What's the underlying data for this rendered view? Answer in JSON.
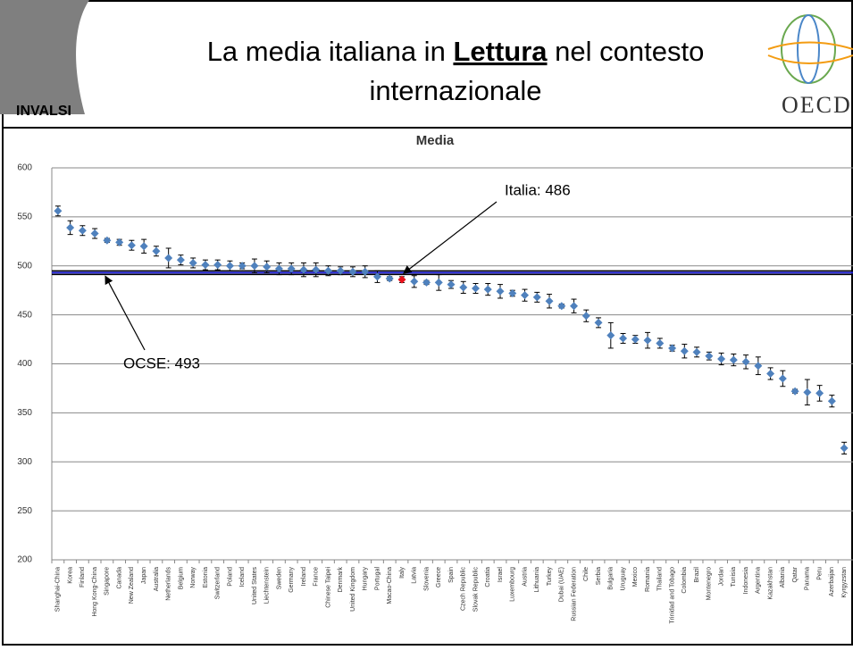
{
  "header": {
    "title": [
      "La media italiana in",
      "Lettura",
      "nel contesto",
      "internazionale"
    ],
    "logo_left": "INVALSI",
    "logo_right": "OECD"
  },
  "chart_data": {
    "type": "scatter",
    "title": "Media",
    "categories": [
      "Shanghai-China",
      "Korea",
      "Finland",
      "Hong Kong-China",
      "Singapore",
      "Canada",
      "New Zealand",
      "Japan",
      "Australia",
      "Netherlands",
      "Belgium",
      "Norway",
      "Estonia",
      "Switzerland",
      "Poland",
      "Iceland",
      "United States",
      "Liechtenstein",
      "Sweden",
      "Germany",
      "Ireland",
      "France",
      "Chinese Taipei",
      "Denmark",
      "United Kingdom",
      "Hungary",
      "Portugal",
      "Macao-China",
      "Italy",
      "Latvia",
      "Slovenia",
      "Greece",
      "Spain",
      "Czech Republic",
      "Slovak Republic",
      "Croatia",
      "Israel",
      "Luxembourg",
      "Austria",
      "Lithuania",
      "Turkey",
      "Dubai (UAE)",
      "Russian Federation",
      "Chile",
      "Serbia",
      "Bulgaria",
      "Uruguay",
      "Mexico",
      "Romania",
      "Thailand",
      "Trinidad and Tobago",
      "Colombia",
      "Brazil",
      "Montenegro",
      "Jordan",
      "Tunisia",
      "Indonesia",
      "Argentina",
      "Kazakhstan",
      "Albania",
      "Qatar",
      "Panama",
      "Peru",
      "Azerbaijan",
      "Kyrgyzstan"
    ],
    "values": [
      556,
      539,
      536,
      533,
      526,
      524,
      521,
      520,
      515,
      508,
      506,
      503,
      501,
      501,
      500,
      500,
      500,
      499,
      497,
      497,
      496,
      496,
      495,
      495,
      494,
      494,
      489,
      487,
      486,
      484,
      483,
      483,
      481,
      478,
      477,
      476,
      474,
      472,
      470,
      468,
      464,
      459,
      459,
      449,
      442,
      429,
      426,
      425,
      424,
      421,
      416,
      413,
      412,
      408,
      405,
      404,
      402,
      398,
      390,
      385,
      372,
      371,
      370,
      362,
      314
    ],
    "errors": [
      5,
      7,
      5,
      5,
      2,
      3,
      5,
      7,
      5,
      10,
      5,
      5,
      5,
      5,
      5,
      3,
      7,
      6,
      6,
      6,
      7,
      7,
      5,
      4,
      5,
      6,
      6,
      2,
      3,
      6,
      2,
      8,
      4,
      6,
      5,
      6,
      7,
      3,
      6,
      5,
      7,
      2,
      7,
      6,
      5,
      13,
      5,
      4,
      8,
      5,
      3,
      7,
      5,
      4,
      6,
      6,
      7,
      9,
      6,
      8,
      2,
      13,
      8,
      6,
      6
    ],
    "colors": [
      "#4f81bd",
      "#4f81bd",
      "#4f81bd",
      "#4f81bd",
      "#4f81bd",
      "#4f81bd",
      "#4f81bd",
      "#4f81bd",
      "#4f81bd",
      "#4f81bd",
      "#4f81bd",
      "#4f81bd",
      "#4f81bd",
      "#4f81bd",
      "#4f81bd",
      "#4f81bd",
      "#4f81bd",
      "#4f81bd",
      "#4f81bd",
      "#4f81bd",
      "#4f81bd",
      "#4f81bd",
      "#4f81bd",
      "#4f81bd",
      "#4f81bd",
      "#4f81bd",
      "#4f81bd",
      "#4f81bd",
      "#e8111a",
      "#4f81bd",
      "#4f81bd",
      "#4f81bd",
      "#4f81bd",
      "#4f81bd",
      "#4f81bd",
      "#4f81bd",
      "#4f81bd",
      "#4f81bd",
      "#4f81bd",
      "#4f81bd",
      "#4f81bd",
      "#4f81bd",
      "#4f81bd",
      "#4f81bd",
      "#4f81bd",
      "#4f81bd",
      "#4f81bd",
      "#4f81bd",
      "#4f81bd",
      "#4f81bd",
      "#4f81bd",
      "#4f81bd",
      "#4f81bd",
      "#4f81bd",
      "#4f81bd",
      "#4f81bd",
      "#4f81bd",
      "#4f81bd",
      "#4f81bd",
      "#4f81bd",
      "#4f81bd",
      "#4f81bd",
      "#4f81bd",
      "#4f81bd",
      "#4f81bd"
    ],
    "reference_lines": [
      {
        "value": 493,
        "color": "#1f1fd0"
      }
    ],
    "annotations": [
      {
        "text": "Italia: 486"
      },
      {
        "text": "OCSE: 493"
      }
    ],
    "ylim": [
      200,
      600
    ],
    "yticks": [
      200,
      250,
      300,
      350,
      400,
      450,
      500,
      550,
      600
    ],
    "grid": true
  }
}
